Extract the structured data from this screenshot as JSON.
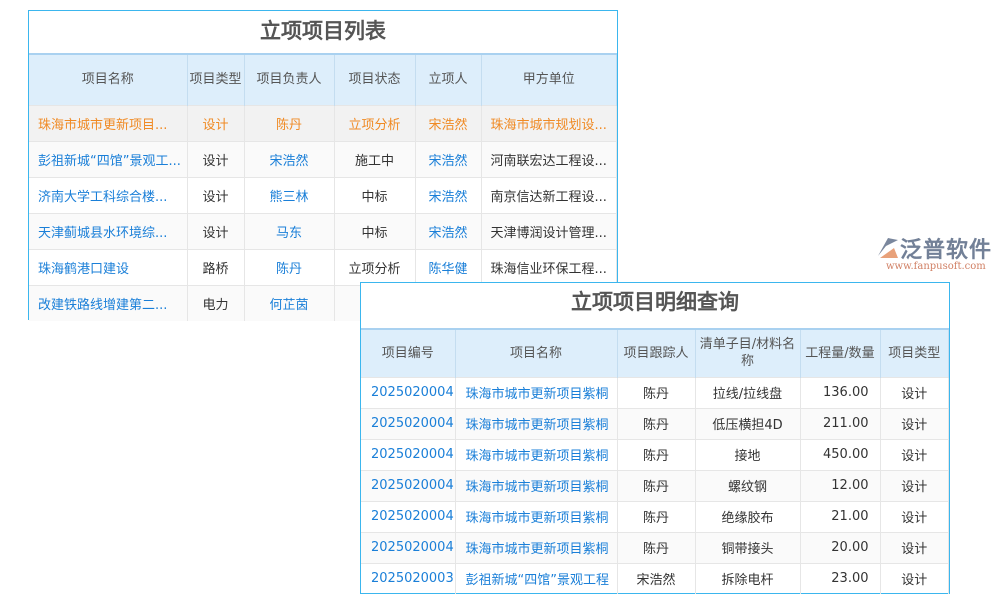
{
  "list_panel": {
    "title": "立项项目列表",
    "columns": [
      "项目名称",
      "项目类型",
      "项目负责人",
      "项目状态",
      "立项人",
      "甲方单位"
    ],
    "rows": [
      [
        "珠海市城市更新项目...",
        "设计",
        "陈丹",
        "立项分析",
        "宋浩然",
        "珠海市城市规划设..."
      ],
      [
        "彭祖新城“四馆”景观工...",
        "设计",
        "宋浩然",
        "施工中",
        "宋浩然",
        "河南联宏达工程设..."
      ],
      [
        "济南大学工科综合楼...",
        "设计",
        "熊三林",
        "中标",
        "宋浩然",
        "南京信达新工程设..."
      ],
      [
        "天津蓟城县水环境综...",
        "设计",
        "马东",
        "中标",
        "宋浩然",
        "天津博润设计管理..."
      ],
      [
        "珠海鹤港口建设",
        "路桥",
        "陈丹",
        "立项分析",
        "陈华健",
        "珠海信业环保工程..."
      ],
      [
        "改建铁路线增建第二...",
        "电力",
        "何芷茵",
        "",
        "",
        ""
      ]
    ],
    "selected_row": 0
  },
  "detail_panel": {
    "title": "立项项目明细查询",
    "columns": [
      "项目编号",
      "项目名称",
      "项目跟踪人",
      "清单子目/材料名称",
      "工程量/数量",
      "项目类型"
    ],
    "rows": [
      [
        "2025020004",
        "珠海市城市更新项目紫桐",
        "陈丹",
        "拉线/拉线盘",
        "136.00",
        "设计"
      ],
      [
        "2025020004",
        "珠海市城市更新项目紫桐",
        "陈丹",
        "低压横担4D",
        "211.00",
        "设计"
      ],
      [
        "2025020004",
        "珠海市城市更新项目紫桐",
        "陈丹",
        "接地",
        "450.00",
        "设计"
      ],
      [
        "2025020004",
        "珠海市城市更新项目紫桐",
        "陈丹",
        "螺纹钢",
        "12.00",
        "设计"
      ],
      [
        "2025020004",
        "珠海市城市更新项目紫桐",
        "陈丹",
        "绝缘胶布",
        "21.00",
        "设计"
      ],
      [
        "2025020004",
        "珠海市城市更新项目紫桐",
        "陈丹",
        "铜带接头",
        "20.00",
        "设计"
      ],
      [
        "2025020003",
        "彭祖新城“四馆”景观工程",
        "宋浩然",
        "拆除电杆",
        "23.00",
        "设计"
      ]
    ]
  },
  "watermark": {
    "name": "泛普软件",
    "url": "www.fanpusoft.com"
  },
  "colors": {
    "border": "#3bb6ee",
    "header_bg": "#ddeefb",
    "link": "#1a7fd8",
    "selected": "#f08a24"
  }
}
